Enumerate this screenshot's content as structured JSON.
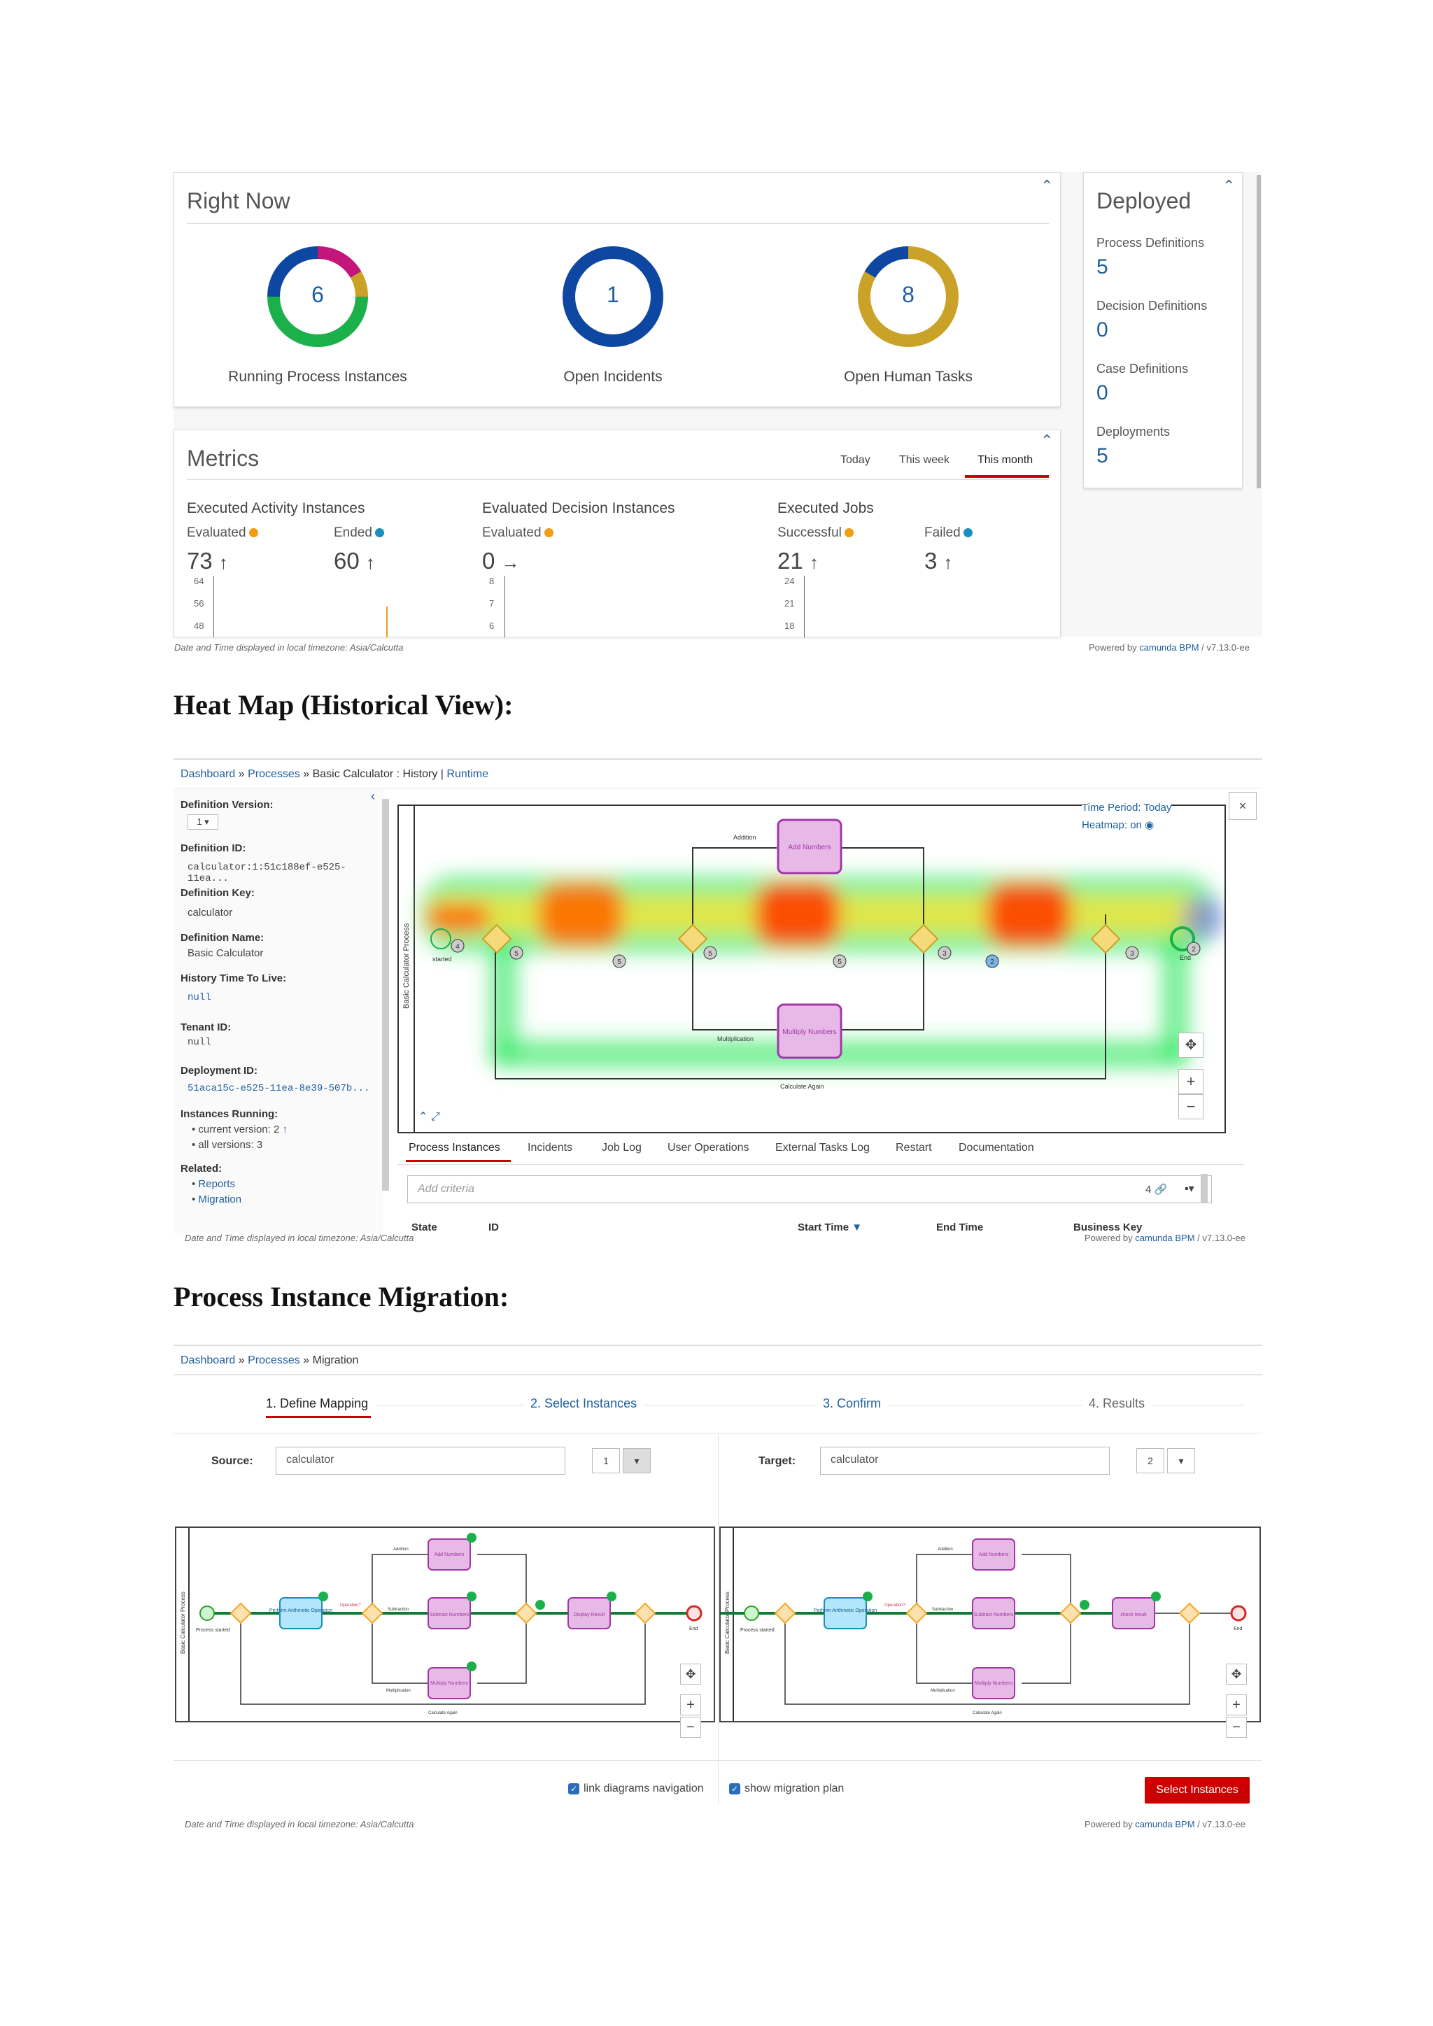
{
  "dashboard": {
    "right_now": {
      "title": "Right Now",
      "donuts": [
        {
          "label": "Running Process Instances",
          "value": "6"
        },
        {
          "label": "Open Incidents",
          "value": "1"
        },
        {
          "label": "Open Human Tasks",
          "value": "8"
        }
      ]
    },
    "deployed": {
      "title": "Deployed",
      "items": [
        {
          "label": "Process Definitions",
          "value": "5"
        },
        {
          "label": "Decision Definitions",
          "value": "0"
        },
        {
          "label": "Case Definitions",
          "value": "0"
        },
        {
          "label": "Deployments",
          "value": "5"
        }
      ]
    },
    "metrics": {
      "title": "Metrics",
      "periods": [
        "Today",
        "This week",
        "This month"
      ],
      "active_period": "This month",
      "groups": [
        {
          "title": "Executed Activity Instances",
          "items": [
            {
              "label": "Evaluated",
              "value": "73",
              "trend": "↑",
              "color": "#f39c12"
            },
            {
              "label": "Ended",
              "value": "60",
              "trend": "↑",
              "color": "#1a8fbf"
            }
          ],
          "ticks": [
            "64",
            "56",
            "48"
          ]
        },
        {
          "title": "Evaluated Decision Instances",
          "items": [
            {
              "label": "Evaluated",
              "value": "0",
              "trend": "→",
              "color": "#f39c12"
            }
          ],
          "ticks": [
            "8",
            "7",
            "6"
          ]
        },
        {
          "title": "Executed Jobs",
          "items": [
            {
              "label": "Successful",
              "value": "21",
              "trend": "↑",
              "color": "#f39c12"
            },
            {
              "label": "Failed",
              "value": "3",
              "trend": "↑",
              "color": "#1a8fbf"
            }
          ],
          "ticks": [
            "24",
            "21",
            "18"
          ]
        }
      ]
    },
    "timezone_note": "Date and Time displayed in local timezone: Asia/Calcutta",
    "powered_prefix": "Powered by ",
    "powered_brand": "camunda BPM",
    "powered_version": " / v7.13.0-ee"
  },
  "heatmap_section": {
    "heading": "Heat Map (Historical View):",
    "breadcrumb": {
      "dashboard": "Dashboard",
      "sep": "»",
      "processes": "Processes",
      "current": "Basic Calculator : History",
      "pipe": "|",
      "runtime": "Runtime"
    },
    "sidebar": {
      "definition_version_label": "Definition Version:",
      "definition_version": "1",
      "definition_id_label": "Definition ID:",
      "definition_id": "calculator:1:51c188ef-e525-11ea...",
      "definition_key_label": "Definition Key:",
      "definition_key": "calculator",
      "definition_name_label": "Definition Name:",
      "definition_name": "Basic Calculator",
      "history_ttl_label": "History Time To Live:",
      "history_ttl": "null",
      "tenant_id_label": "Tenant ID:",
      "tenant_id": "null",
      "deployment_id_label": "Deployment ID:",
      "deployment_id": "51aca15c-e525-11ea-8e39-507b...",
      "instances_running_label": "Instances Running:",
      "current_version": "current version: 2",
      "all_versions": "all versions: 3",
      "related_label": "Related:",
      "related": [
        "Reports",
        "Migration"
      ]
    },
    "diagram": {
      "time_period": "Time Period: Today",
      "heatmap": "Heatmap: on",
      "close": "×",
      "pool_label": "Basic Calculator Process",
      "tasks": {
        "add": "Add Numbers",
        "multiply": "Multiply Numbers"
      },
      "flow_labels": {
        "addition": "Addition",
        "multiplication": "Multiplication",
        "calculate_again": "Calculate Again",
        "started": "started",
        "end": "End"
      },
      "badges": [
        "4",
        "5",
        "5",
        "5",
        "5",
        "2",
        "3",
        "3",
        "2"
      ]
    },
    "tabs": [
      "Process Instances",
      "Incidents",
      "Job Log",
      "User Operations",
      "External Tasks Log",
      "Restart",
      "Documentation"
    ],
    "active_tab": "Process Instances",
    "search_placeholder": "Add criteria",
    "search_count": "4",
    "columns": [
      "State",
      "ID",
      "Start Time",
      "End Time",
      "Business Key"
    ],
    "timezone_note": "Date and Time displayed in local timezone: Asia/Calcutta"
  },
  "migration_section": {
    "heading": "Process Instance Migration:",
    "breadcrumb": {
      "dashboard": "Dashboard",
      "sep": "»",
      "processes": "Processes",
      "current": "Migration"
    },
    "steps": [
      "1. Define Mapping",
      "2. Select Instances",
      "3. Confirm",
      "4. Results"
    ],
    "source_label": "Source:",
    "source_value": "calculator",
    "source_version": "1",
    "target_label": "Target:",
    "target_value": "calculator",
    "target_version": "2",
    "diagram_labels": {
      "pool": "Basic Calculator Process",
      "perform": "Perform Arithmetic Operation",
      "add": "Add Numbers",
      "subtract": "Subtract Numbers",
      "multiply": "Multiply Numbers",
      "result": "Display Result",
      "check": "check result",
      "addition": "Addition",
      "subtraction": "Subtraction",
      "multiplication": "Multiplication",
      "calculate_again": "Calculate Again",
      "operation": "Operation?",
      "started": "Process started",
      "end": "End"
    },
    "link_nav": "link diagrams navigation",
    "show_plan": "show migration plan",
    "select_button": "Select Instances",
    "timezone_note": "Date and Time displayed in local timezone: Asia/Calcutta"
  },
  "colors": {
    "link": "#1f5f9f",
    "accent_red": "#cc0000",
    "donut_blue": "#0d47a1",
    "donut_gold": "#c9a227",
    "donut_green": "#1bb04a",
    "donut_magenta": "#c3157a",
    "task_fill": "#e7b9e6",
    "task_stroke": "#a336a6"
  }
}
